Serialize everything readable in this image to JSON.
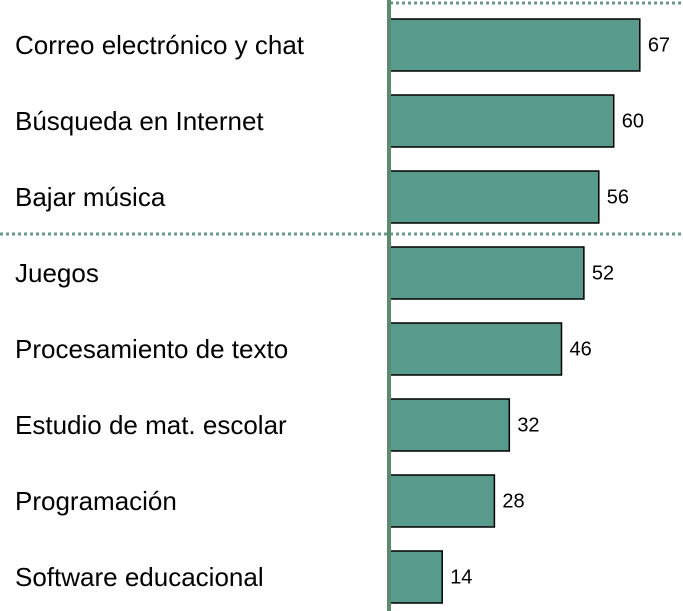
{
  "chart_data": {
    "type": "barh",
    "categories": [
      "Correo electrónico y chat",
      "Búsqueda en Internet",
      "Bajar música",
      "Juegos",
      "Procesamiento de texto",
      "Estudio de mat. escolar",
      "Programación",
      "Software educacional"
    ],
    "values": [
      67,
      60,
      56,
      52,
      46,
      32,
      28,
      14
    ],
    "color": "#589a8c",
    "xlim": [
      0,
      70
    ]
  }
}
